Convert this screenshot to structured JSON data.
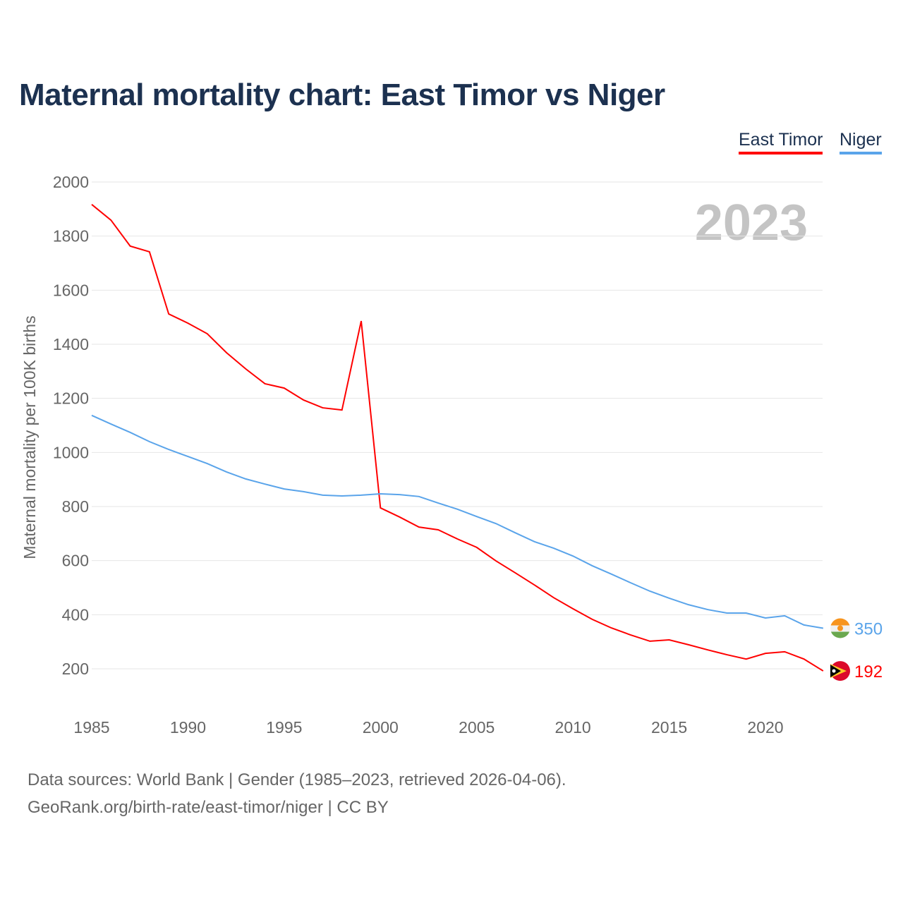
{
  "title": "Maternal mortality chart: East Timor vs Niger",
  "legend": [
    "East Timor",
    "Niger"
  ],
  "year_label": "2023",
  "source_line1": "Data sources: World Bank | Gender (1985–2023, retrieved 2026-04-06).",
  "source_line2": "GeoRank.org/birth-rate/east-timor/niger | CC BY",
  "colors": {
    "east_timor": "#ff0000",
    "niger": "#5aa4ea"
  },
  "chart_data": {
    "type": "line",
    "title": "Maternal mortality chart: East Timor vs Niger",
    "xlabel": "",
    "ylabel": "Maternal mortality per 100K births",
    "xlim": [
      1985,
      2023
    ],
    "ylim": [
      200,
      2000
    ],
    "xticks": [
      1985,
      1990,
      1995,
      2000,
      2005,
      2010,
      2015,
      2020
    ],
    "yticks": [
      200,
      400,
      600,
      800,
      1000,
      1200,
      1400,
      1600,
      1800,
      2000
    ],
    "x": [
      1985,
      1986,
      1987,
      1988,
      1989,
      1990,
      1991,
      1992,
      1993,
      1994,
      1995,
      1996,
      1997,
      1998,
      1999,
      2000,
      2001,
      2002,
      2003,
      2004,
      2005,
      2006,
      2007,
      2008,
      2009,
      2010,
      2011,
      2012,
      2013,
      2014,
      2015,
      2016,
      2017,
      2018,
      2019,
      2020,
      2021,
      2022,
      2023
    ],
    "series": [
      {
        "name": "East Timor",
        "end_label": "192",
        "values": [
          1917,
          1859,
          1763,
          1742,
          1512,
          1478,
          1439,
          1369,
          1309,
          1254,
          1238,
          1194,
          1165,
          1157,
          1486,
          795,
          761,
          724,
          714,
          680,
          649,
          599,
          555,
          510,
          463,
          422,
          383,
          351,
          325,
          302,
          307,
          289,
          270,
          252,
          236,
          257,
          263,
          236,
          192
        ]
      },
      {
        "name": "Niger",
        "end_label": "350",
        "values": [
          1137,
          1105,
          1074,
          1040,
          1011,
          985,
          959,
          928,
          902,
          883,
          865,
          855,
          842,
          839,
          842,
          847,
          844,
          837,
          813,
          790,
          763,
          737,
          703,
          670,
          646,
          617,
          581,
          550,
          518,
          487,
          461,
          437,
          419,
          406,
          406,
          388,
          396,
          362,
          350
        ]
      }
    ]
  }
}
